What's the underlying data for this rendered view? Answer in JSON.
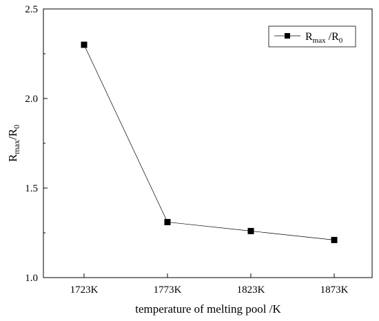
{
  "chart_data": {
    "type": "line",
    "title": "",
    "xlabel": "temperature of melting pool  /K",
    "ylabel": {
      "base": "R",
      "sub1": "max",
      "mid": "/R",
      "sub2": "0"
    },
    "categories": [
      "1723K",
      "1773K",
      "1823K",
      "1873K"
    ],
    "series": [
      {
        "name": {
          "base": "R",
          "sub1": "max",
          "mid": " /R",
          "sub2": "0"
        },
        "values": [
          2.3,
          1.31,
          1.26,
          1.21
        ],
        "color": "#000000",
        "marker": "square"
      }
    ],
    "ylim": [
      1.0,
      2.5
    ],
    "yticks": [
      "1.0",
      "1.5",
      "2.0",
      "2.5"
    ],
    "legend_position": "top-right",
    "grid": false
  }
}
